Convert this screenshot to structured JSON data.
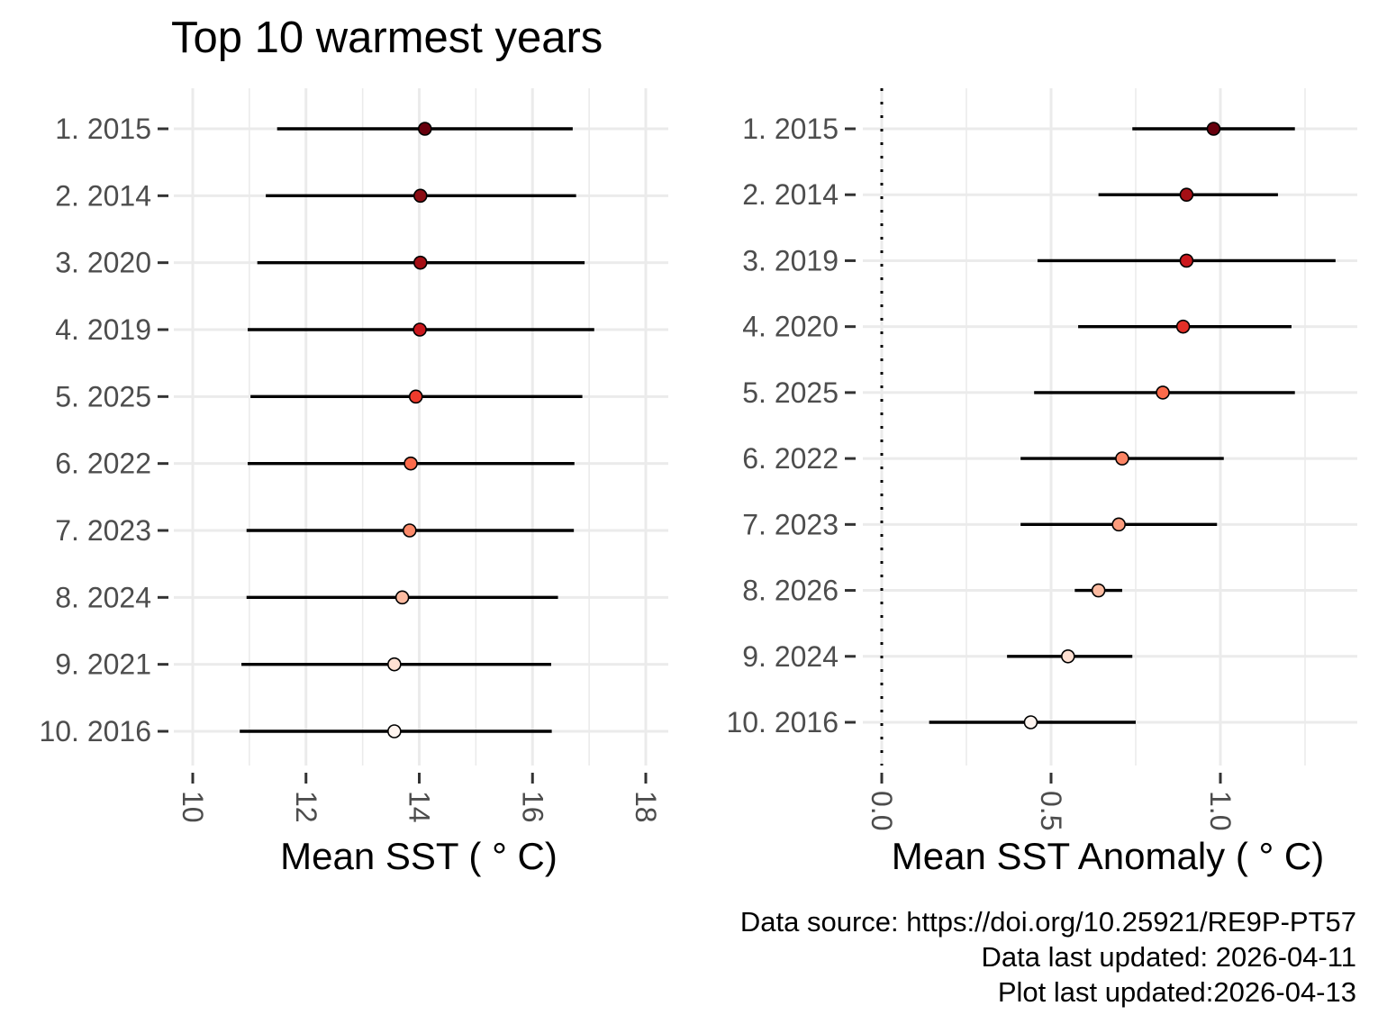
{
  "chart_data": [
    {
      "type": "scatter",
      "subtype": "pointrange",
      "title": "Top 10 warmest years",
      "xlabel": "Mean SST ( ° C)",
      "ylabel": "",
      "xlim": [
        9.7,
        18.4
      ],
      "xticks": [
        10,
        12,
        14,
        16,
        18
      ],
      "xtick_labels": [
        "10",
        "12",
        "14",
        "16",
        "18"
      ],
      "categories": [
        "1. 2015",
        "2. 2014",
        "3. 2020",
        "4. 2019",
        "5. 2025",
        "6. 2022",
        "7. 2023",
        "8. 2024",
        "9. 2021",
        "10. 2016"
      ],
      "series": [
        {
          "name": "mean",
          "values": [
            14.1,
            14.02,
            14.02,
            14.01,
            13.94,
            13.85,
            13.83,
            13.7,
            13.56,
            13.56
          ]
        },
        {
          "name": "lower",
          "values": [
            11.49,
            11.29,
            11.14,
            10.97,
            11.02,
            10.97,
            10.95,
            10.95,
            10.86,
            10.83
          ]
        },
        {
          "name": "upper",
          "values": [
            16.71,
            16.77,
            16.92,
            17.09,
            16.88,
            16.74,
            16.73,
            16.45,
            16.33,
            16.34
          ]
        }
      ],
      "point_colors": [
        "#67000d",
        "#8b0d14",
        "#a50f15",
        "#cb181d",
        "#ef3b2c",
        "#fb6a4a",
        "#fc8a6a",
        "#fcbba1",
        "#fee0d2",
        "#fff5f0"
      ],
      "grid": true,
      "legend": "none"
    },
    {
      "type": "scatter",
      "subtype": "pointrange",
      "title": "",
      "xlabel": "Mean SST Anomaly ( ° C)",
      "ylabel": "",
      "xlim": [
        -0.01,
        1.4
      ],
      "xticks": [
        0.0,
        0.5,
        1.0
      ],
      "xtick_labels": [
        "0.0",
        "0.5",
        "1.0"
      ],
      "reference_line": {
        "x": 0.0,
        "style": "dotted"
      },
      "categories": [
        "1. 2015",
        "2. 2014",
        "3. 2019",
        "4. 2020",
        "5. 2025",
        "6. 2022",
        "7. 2023",
        "8. 2026",
        "9. 2024",
        "10. 2016"
      ],
      "series": [
        {
          "name": "mean",
          "values": [
            0.98,
            0.9,
            0.9,
            0.89,
            0.83,
            0.71,
            0.7,
            0.64,
            0.55,
            0.44
          ]
        },
        {
          "name": "lower",
          "values": [
            0.74,
            0.64,
            0.46,
            0.58,
            0.45,
            0.41,
            0.41,
            0.57,
            0.37,
            0.14
          ]
        },
        {
          "name": "upper",
          "values": [
            1.22,
            1.17,
            1.34,
            1.21,
            1.22,
            1.01,
            0.99,
            0.71,
            0.74,
            0.75
          ]
        }
      ],
      "point_colors": [
        "#67000d",
        "#a50f15",
        "#cb181d",
        "#e32f27",
        "#fb6a4a",
        "#fc8464",
        "#fc9c7d",
        "#fcbba1",
        "#fee0d2",
        "#fff5f0"
      ],
      "grid": true,
      "legend": "none"
    }
  ],
  "caption": {
    "source": "Data source: https://doi.org/10.25921/RE9P-PT57",
    "data_updated": "Data last updated: 2026-04-11",
    "plot_updated": "Plot last updated:2026-04-13"
  }
}
